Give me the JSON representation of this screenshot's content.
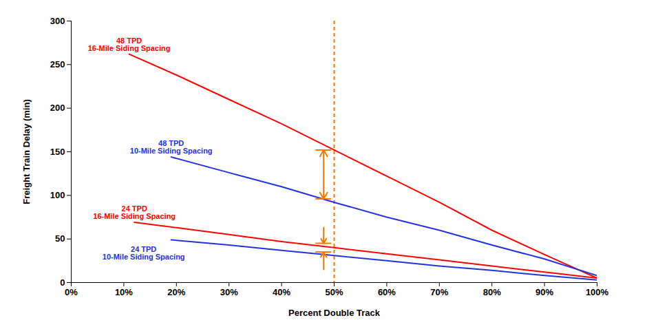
{
  "chart_data": {
    "type": "line",
    "x_label": "Percent Double Track",
    "y_label": "Freight Train Delay (min)",
    "xlim": [
      0,
      100
    ],
    "xticks": [
      {
        "value": 0,
        "label": "0%"
      },
      {
        "value": 10,
        "label": "10%"
      },
      {
        "value": 20,
        "label": "20%"
      },
      {
        "value": 30,
        "label": "30%"
      },
      {
        "value": 40,
        "label": "40%"
      },
      {
        "value": 50,
        "label": "50%"
      },
      {
        "value": 60,
        "label": "60%"
      },
      {
        "value": 70,
        "label": "70%"
      },
      {
        "value": 80,
        "label": "80%"
      },
      {
        "value": 90,
        "label": "90%"
      },
      {
        "value": 100,
        "label": "100%"
      }
    ],
    "ylim": [
      0,
      300
    ],
    "yticks": [
      0,
      50,
      100,
      150,
      200,
      250,
      300
    ],
    "grid": false,
    "series": [
      {
        "name": "48 TPD\n16-Mile Siding Spacing",
        "color": "#ff0000",
        "x": [
          11,
          20,
          30,
          40,
          50,
          60,
          70,
          80,
          90,
          100
        ],
        "values": [
          262,
          238,
          210,
          182,
          152,
          122,
          92,
          60,
          32,
          5
        ]
      },
      {
        "name": "48 TPD\n10-Mile Siding Spacing",
        "color": "#2233dd",
        "x": [
          19,
          30,
          40,
          50,
          60,
          70,
          80,
          90,
          100
        ],
        "values": [
          144,
          126,
          110,
          92,
          75,
          60,
          43,
          27,
          8
        ]
      },
      {
        "name": "24 TPD\n16-Mile Siding Spacing",
        "color": "#ff0000",
        "x": [
          12,
          20,
          30,
          40,
          50,
          60,
          70,
          80,
          90,
          100
        ],
        "values": [
          69,
          63,
          55,
          47,
          40,
          33,
          26,
          19,
          12,
          5
        ]
      },
      {
        "name": "24 TPD\n10-Mile Siding Spacing",
        "color": "#2233dd",
        "x": [
          19,
          30,
          40,
          50,
          60,
          70,
          80,
          90,
          100
        ],
        "values": [
          49,
          43,
          37,
          31,
          25,
          19,
          14,
          8,
          3
        ]
      }
    ],
    "reference_line": {
      "x": 50,
      "color": "#f07800",
      "line_style": "dashed"
    },
    "brackets": [
      {
        "x": 48,
        "from": 152,
        "to": 96,
        "color": "#f07800"
      },
      {
        "x": 48,
        "from": 45,
        "to": 35,
        "color": "#f07800"
      }
    ]
  }
}
